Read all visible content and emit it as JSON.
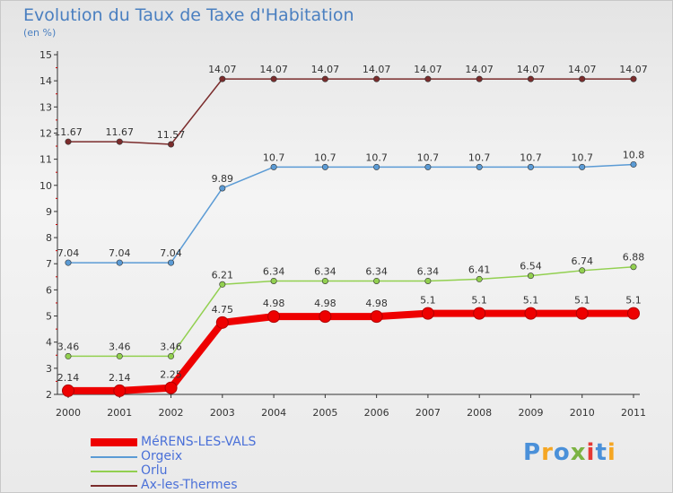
{
  "chart_data": {
    "type": "line",
    "title": "Evolution du Taux de Taxe d'Habitation",
    "subtitle": "(en %)",
    "x": [
      "2000",
      "2001",
      "2002",
      "2003",
      "2004",
      "2005",
      "2006",
      "2007",
      "2008",
      "2009",
      "2010",
      "2011"
    ],
    "ylim": [
      2,
      15
    ],
    "yticks": [
      "2",
      "3",
      "4",
      "5",
      "6",
      "7",
      "8",
      "9",
      "10",
      "11",
      "12",
      "13",
      "14",
      "15"
    ],
    "grid": false,
    "legend_position": "bottom-left",
    "series": [
      {
        "name": "MéRENS-LES-VALS",
        "color": "#ee0000",
        "emphasis": true,
        "values": [
          2.14,
          2.14,
          2.25,
          4.75,
          4.98,
          4.98,
          4.98,
          5.1,
          5.1,
          5.1,
          5.1,
          5.1
        ],
        "labels": [
          "2.14",
          "2.14",
          "2.25",
          "4.75",
          "4.98",
          "4.98",
          "4.98",
          "5.1",
          "5.1",
          "5.1",
          "5.1",
          "5.1"
        ]
      },
      {
        "name": "Orgeix",
        "color": "#5b9bd5",
        "values": [
          7.04,
          7.04,
          7.04,
          9.89,
          10.7,
          10.7,
          10.7,
          10.7,
          10.7,
          10.7,
          10.7,
          10.8
        ],
        "labels": [
          "7.04",
          "7.04",
          "7.04",
          "9.89",
          "10.7",
          "10.7",
          "10.7",
          "10.7",
          "10.7",
          "10.7",
          "10.7",
          "10.8"
        ]
      },
      {
        "name": "Orlu",
        "color": "#92d050",
        "values": [
          3.46,
          3.46,
          3.46,
          6.21,
          6.34,
          6.34,
          6.34,
          6.34,
          6.41,
          6.54,
          6.74,
          6.88
        ],
        "labels": [
          "3.46",
          "3.46",
          "3.46",
          "6.21",
          "6.34",
          "6.34",
          "6.34",
          "6.34",
          "6.41",
          "6.54",
          "6.74",
          "6.88"
        ]
      },
      {
        "name": "Ax-les-Thermes",
        "color": "#7b2c2c",
        "values": [
          11.67,
          11.67,
          11.57,
          14.07,
          14.07,
          14.07,
          14.07,
          14.07,
          14.07,
          14.07,
          14.07,
          14.07
        ],
        "labels": [
          "11.67",
          "11.67",
          "11.57",
          "14.07",
          "14.07",
          "14.07",
          "14.07",
          "14.07",
          "14.07",
          "14.07",
          "14.07",
          "14.07"
        ]
      }
    ]
  },
  "logo": {
    "text": "Proxiti",
    "colors": [
      "#4a90d9",
      "#f5a623",
      "#4a90d9",
      "#7cb342",
      "#e53935",
      "#4a90d9",
      "#f5a623"
    ]
  }
}
